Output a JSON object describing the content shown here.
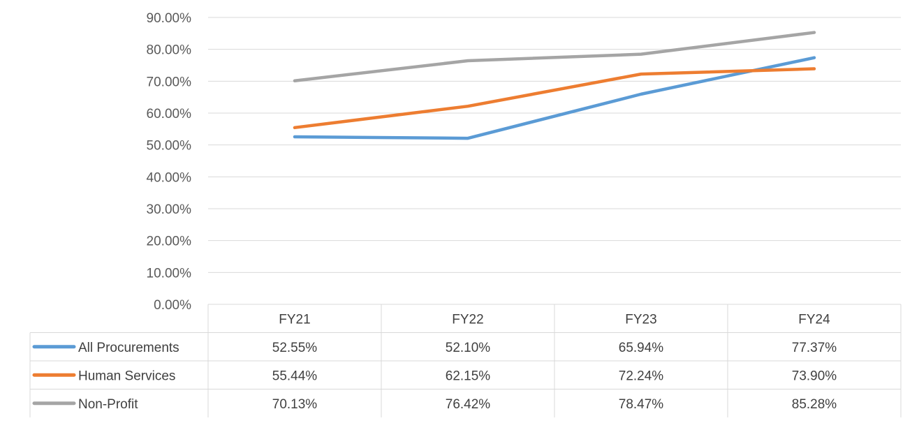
{
  "chart_data": {
    "type": "line",
    "categories": [
      "FY21",
      "FY22",
      "FY23",
      "FY24"
    ],
    "series": [
      {
        "name": "All Procurements",
        "color": "#5b9bd5",
        "values": [
          52.55,
          52.1,
          65.94,
          77.37
        ],
        "labels": [
          "52.55%",
          "52.10%",
          "65.94%",
          "77.37%"
        ]
      },
      {
        "name": "Human Services",
        "color": "#ed7d31",
        "values": [
          55.44,
          62.15,
          72.24,
          73.9
        ],
        "labels": [
          "55.44%",
          "62.15%",
          "72.24%",
          "73.90%"
        ]
      },
      {
        "name": "Non-Profit",
        "color": "#a5a5a5",
        "values": [
          70.13,
          76.42,
          78.47,
          85.28
        ],
        "labels": [
          "70.13%",
          "76.42%",
          "78.47%",
          "85.28%"
        ]
      }
    ],
    "ylim": [
      0,
      90
    ],
    "yticks": [
      "0.00%",
      "10.00%",
      "20.00%",
      "30.00%",
      "40.00%",
      "50.00%",
      "60.00%",
      "70.00%",
      "80.00%",
      "90.00%"
    ],
    "grid": true,
    "legend": "data-table-below"
  }
}
